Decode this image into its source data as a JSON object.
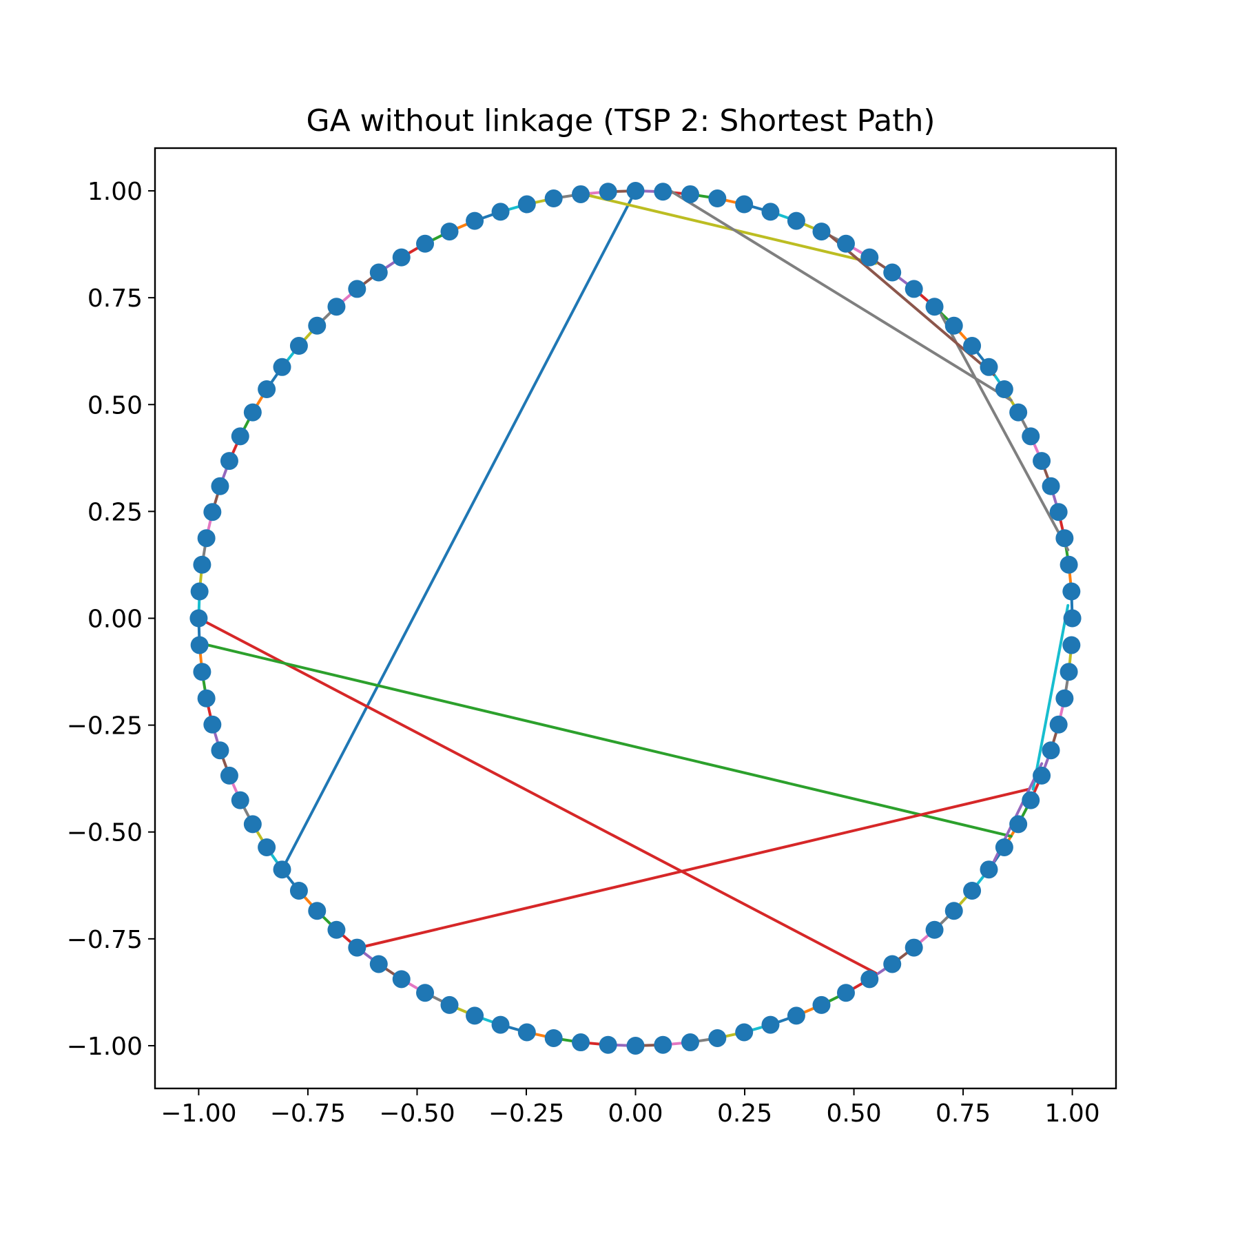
{
  "chart_data": {
    "type": "line",
    "title": "GA without linkage (TSP 2: Shortest Path)",
    "xlabel": "",
    "ylabel": "",
    "xlim": [
      -1.1,
      1.1
    ],
    "ylim": [
      -1.1,
      1.1
    ],
    "x_ticks": [
      -1.0,
      -0.75,
      -0.5,
      -0.25,
      0.0,
      0.25,
      0.5,
      0.75,
      1.0
    ],
    "y_ticks": [
      -1.0,
      -0.75,
      -0.5,
      -0.25,
      0.0,
      0.25,
      0.5,
      0.75,
      1.0
    ],
    "x_tick_labels": [
      "−1.00",
      "−0.75",
      "−0.50",
      "−0.25",
      "0.00",
      "0.25",
      "0.50",
      "0.75",
      "1.00"
    ],
    "y_tick_labels": [
      "−1.00",
      "−0.75",
      "−0.50",
      "−0.25",
      "0.00",
      "0.25",
      "0.50",
      "0.75",
      "1.00"
    ],
    "grid": false,
    "city_count": 100,
    "marker_color": "#1f77b4",
    "segment_color_cycle": [
      "#1f77b4",
      "#ff7f0e",
      "#2ca02c",
      "#d62728",
      "#9467bd",
      "#8c564b",
      "#e377c2",
      "#7f7f7f",
      "#bcbd22",
      "#17becf"
    ],
    "tour_order": [
      0,
      1,
      2,
      3,
      4,
      5,
      6,
      7,
      8,
      9,
      10,
      11,
      12,
      13,
      14,
      15,
      16,
      17,
      18,
      19,
      20,
      21,
      22,
      23,
      24,
      25,
      26,
      27,
      28,
      29,
      30,
      31,
      32,
      33,
      34,
      35,
      36,
      37,
      38,
      39,
      40,
      41,
      42,
      43,
      44,
      45,
      46,
      47,
      48,
      49,
      50,
      51,
      52,
      53,
      54,
      55,
      56,
      57,
      58,
      59,
      60,
      61,
      62,
      63,
      64,
      65,
      66,
      67,
      68,
      69,
      70,
      71,
      72,
      73,
      74,
      75,
      76,
      77,
      78,
      79,
      80,
      81,
      82,
      83,
      84,
      85,
      86,
      87,
      88,
      89,
      90,
      91,
      92,
      93,
      94,
      95,
      96,
      97,
      98,
      99
    ],
    "long_segments": [
      {
        "from": [
          0.0,
          1.0
        ],
        "to": [
          -0.81,
          -0.59
        ],
        "color": "#1f77b4"
      },
      {
        "from": [
          -1.0,
          0.0
        ],
        "to": [
          0.55,
          -0.83
        ],
        "color": "#d62728"
      },
      {
        "from": [
          -0.99,
          -0.06
        ],
        "to": [
          0.86,
          -0.51
        ],
        "color": "#2ca02c"
      },
      {
        "from": [
          -0.63,
          -0.77
        ],
        "to": [
          0.9,
          -0.4
        ],
        "color": "#d62728"
      },
      {
        "from": [
          -0.11,
          0.99
        ],
        "to": [
          0.55,
          0.83
        ],
        "color": "#bcbd22"
      },
      {
        "from": [
          0.08,
          1.0
        ],
        "to": [
          0.86,
          0.51
        ],
        "color": "#7f7f7f"
      },
      {
        "from": [
          0.7,
          0.71
        ],
        "to": [
          0.99,
          0.16
        ],
        "color": "#7f7f7f"
      },
      {
        "from": [
          0.44,
          0.9
        ],
        "to": [
          0.82,
          0.57
        ],
        "color": "#8c564b"
      },
      {
        "from": [
          0.99,
          0.03
        ],
        "to": [
          0.91,
          -0.4
        ],
        "color": "#17becf"
      },
      {
        "from": [
          0.93,
          -0.34
        ],
        "to": [
          0.82,
          -0.57
        ],
        "color": "#9467bd"
      }
    ]
  }
}
